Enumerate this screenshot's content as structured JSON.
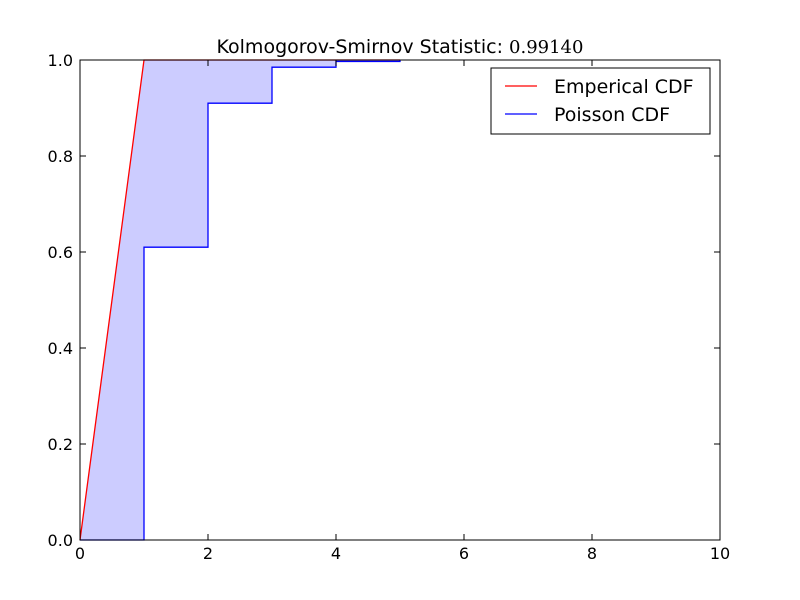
{
  "chart_data": {
    "type": "line",
    "title": "Kolmogorov-Smirnov Statistic: ",
    "title_value": "0.99140",
    "xlim": [
      0,
      10
    ],
    "ylim": [
      0.0,
      1.0
    ],
    "x_ticks": [
      0,
      2,
      4,
      6,
      8,
      10
    ],
    "x_tick_labels": [
      "0",
      "2",
      "4",
      "6",
      "8",
      "10"
    ],
    "y_ticks": [
      0.0,
      0.2,
      0.4,
      0.6,
      0.8,
      1.0
    ],
    "y_tick_labels": [
      "0.0",
      "0.2",
      "0.4",
      "0.6",
      "0.8",
      "1.0"
    ],
    "grid": false,
    "legend_position": "top-right",
    "series": [
      {
        "name": "Emperical CDF",
        "color": "#ff0000",
        "style": "line",
        "x": [
          0,
          1,
          2,
          3,
          4,
          5
        ],
        "y": [
          0.0,
          1.0,
          1.0,
          1.0,
          1.0,
          1.0
        ]
      },
      {
        "name": "Poisson CDF",
        "color": "#0000ff",
        "style": "step-post",
        "x": [
          0,
          1,
          2,
          3,
          4,
          5
        ],
        "y": [
          0.0,
          0.61,
          0.91,
          0.985,
          0.997,
          1.0
        ]
      }
    ],
    "fill_between": {
      "color": "#ccccff",
      "between": [
        "Emperical CDF",
        "Poisson CDF"
      ]
    }
  }
}
